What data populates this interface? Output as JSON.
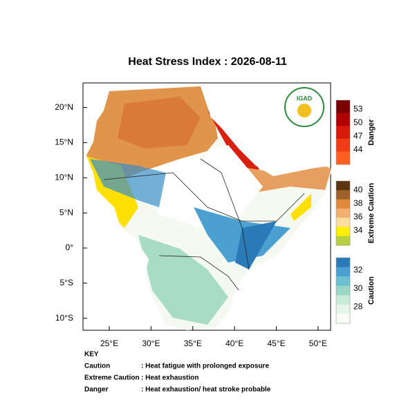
{
  "title": "Heat Stress Index : 2026-08-11",
  "map": {
    "xlim": [
      21.85,
      51.5
    ],
    "ylim": [
      -11.7,
      23.5
    ],
    "xticks": [
      {
        "value": 25,
        "label": "25°E"
      },
      {
        "value": 30,
        "label": "30°E"
      },
      {
        "value": 35,
        "label": "35°E"
      },
      {
        "value": 40,
        "label": "40°E"
      },
      {
        "value": 45,
        "label": "45°E"
      },
      {
        "value": 50,
        "label": "50°E"
      }
    ],
    "yticks": [
      {
        "value": 20,
        "label": "20°N"
      },
      {
        "value": 15,
        "label": "15°N"
      },
      {
        "value": 10,
        "label": "10°N"
      },
      {
        "value": 5,
        "label": "5°N"
      },
      {
        "value": 0,
        "label": "0°"
      },
      {
        "value": -5,
        "label": "5°S"
      },
      {
        "value": -10,
        "label": "10°S"
      }
    ]
  },
  "logo": "IGAD",
  "legend": [
    {
      "name": "Danger",
      "ticks": [
        53,
        50,
        47,
        44
      ],
      "colors": [
        "#7a0000",
        "#b00000",
        "#d81a0a",
        "#f03c14",
        "#ff6020"
      ]
    },
    {
      "name": "Extreme Caution",
      "ticks": [
        40,
        38,
        36,
        34
      ],
      "colors": [
        "#5a3510",
        "#a0602a",
        "#e08a3c",
        "#f0b070",
        "#fbe0a0",
        "#fff000",
        "#b8d040"
      ]
    },
    {
      "name": "Caution",
      "ticks": [
        32,
        30,
        28
      ],
      "colors": [
        "#2a7ab8",
        "#4aa0d0",
        "#6cc0d0",
        "#9cd8c8",
        "#c8ead8",
        "#e8f6ea",
        "#f8fcf6"
      ]
    }
  ],
  "key": {
    "heading": "KEY",
    "rows": [
      [
        "Caution",
        ": Heat fatigue with prolonged exposure"
      ],
      [
        "Extreme Caution",
        ": Heat exhaustion"
      ],
      [
        "Danger",
        ": Heat exhaustion/ heat stroke probable"
      ]
    ]
  }
}
